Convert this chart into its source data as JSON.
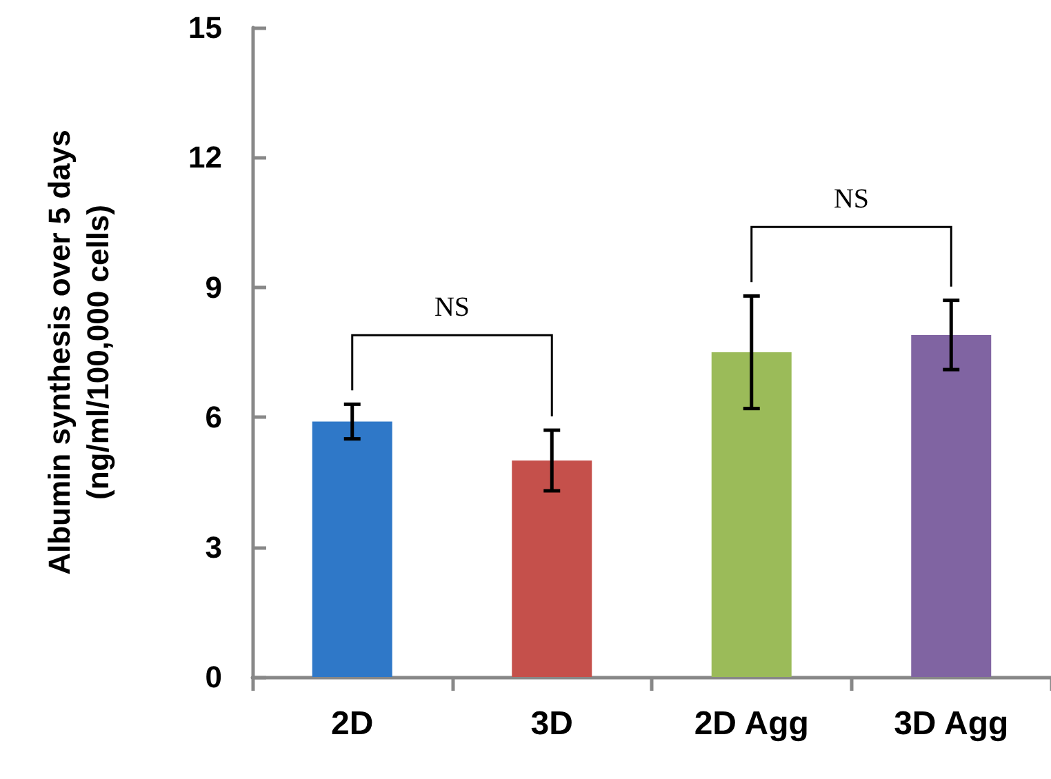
{
  "chart_data": {
    "type": "bar",
    "ylabel": "Albumin synthesis over 5 days\n(ng/ml/100,000 cells)",
    "categories": [
      "2D",
      "3D",
      "2D Agg",
      "3D Agg"
    ],
    "values": [
      5.9,
      5.0,
      7.5,
      7.9
    ],
    "colors": [
      "#2f78c8",
      "#c5504b",
      "#9bbb59",
      "#8064a2"
    ],
    "errors": [
      [
        5.5,
        6.3
      ],
      [
        4.3,
        5.7
      ],
      [
        6.2,
        8.8
      ],
      [
        7.1,
        8.7
      ]
    ],
    "ylim": [
      0,
      15
    ],
    "yticks": [
      0,
      3,
      6,
      9,
      12,
      15
    ],
    "annotations": [
      "NS",
      "NS"
    ]
  }
}
